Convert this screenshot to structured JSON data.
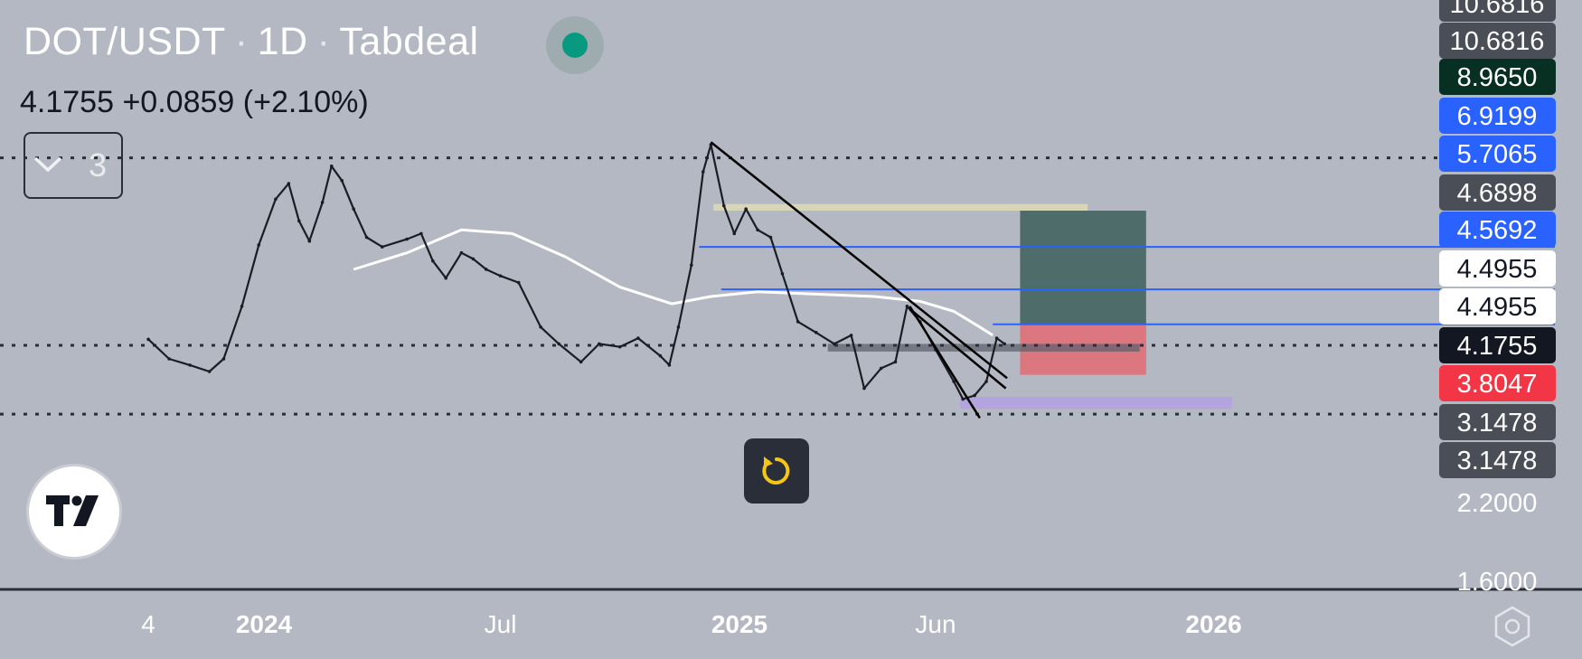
{
  "header": {
    "symbol": "DOT/USDT",
    "interval": "1D",
    "exchange": "Tabdeal",
    "separator": "·"
  },
  "quote": {
    "price": "4.1755",
    "change": "+0.0859",
    "change_pct": "(+2.10%)"
  },
  "indicators_toggle": {
    "count": "3",
    "icon": "chevron-down-icon"
  },
  "logo": {
    "icon": "tradingview-logo"
  },
  "reset_button": {
    "icon": "reset-icon",
    "color": "#f5c518"
  },
  "settings": {
    "icon": "gear-icon"
  },
  "colors": {
    "background": "#b4b8c2",
    "candle": "#1b1d24",
    "ma_line": "#ffffff",
    "hline_blue": "#2962ff",
    "gain_zone": "#4e6d6a",
    "loss_zone": "#e0707a",
    "support_zone": "#b3a3de",
    "resistance_zone": "#d9d5b8"
  },
  "chart_data": {
    "type": "line",
    "title": "DOT/USDT · 1D · Tabdeal",
    "x_ticks": [
      {
        "label": "4",
        "date": "2023-10-04",
        "bold": false
      },
      {
        "label": "2024",
        "date": "2024-01-01",
        "bold": true
      },
      {
        "label": "Jul",
        "date": "2024-07-01",
        "bold": false
      },
      {
        "label": "2025",
        "date": "2025-01-01",
        "bold": true
      },
      {
        "label": "Jun",
        "date": "2025-06-01",
        "bold": false
      },
      {
        "label": "2026",
        "date": "2026-01-01",
        "bold": true
      }
    ],
    "y_scale": "log",
    "ylim": [
      1.6,
      10.8
    ],
    "y_axis_labels": [
      {
        "value": 10.6816,
        "label": "10.6816",
        "style": "plain"
      },
      {
        "value": 10.6816,
        "label": "10.6816",
        "style": "plain"
      },
      {
        "value": 8.965,
        "label": "8.9650",
        "style": "dark-green"
      },
      {
        "value": 6.9199,
        "label": "6.9199",
        "style": "blue"
      },
      {
        "value": 5.7065,
        "label": "5.7065",
        "style": "blue"
      },
      {
        "value": 4.6898,
        "label": "4.6898",
        "style": "plain"
      },
      {
        "value": 4.5692,
        "label": "4.5692",
        "style": "blue"
      },
      {
        "value": 4.4955,
        "label": "4.4955",
        "style": "white"
      },
      {
        "value": 4.4955,
        "label": "4.4955",
        "style": "white"
      },
      {
        "value": 4.1755,
        "label": "4.1755",
        "style": "black"
      },
      {
        "value": 3.8047,
        "label": "3.8047",
        "style": "red"
      },
      {
        "value": 3.1478,
        "label": "3.1478",
        "style": "plain"
      },
      {
        "value": 3.1478,
        "label": "3.1478",
        "style": "plain"
      },
      {
        "value": 2.2,
        "label": "2.2000",
        "style": "none"
      },
      {
        "value": 1.6,
        "label": "1.6000",
        "style": "none"
      }
    ],
    "price_series": {
      "name": "DOT/USDT",
      "points": [
        [
          "2023-10-04",
          4.28
        ],
        [
          "2023-10-20",
          3.95
        ],
        [
          "2023-11-05",
          3.85
        ],
        [
          "2023-11-20",
          3.75
        ],
        [
          "2023-12-01",
          3.95
        ],
        [
          "2023-12-15",
          4.9
        ],
        [
          "2023-12-28",
          6.3
        ],
        [
          "2024-01-10",
          7.6
        ],
        [
          "2024-01-20",
          8.1
        ],
        [
          "2024-01-28",
          6.95
        ],
        [
          "2024-02-05",
          6.4
        ],
        [
          "2024-02-15",
          7.5
        ],
        [
          "2024-02-22",
          8.7
        ],
        [
          "2024-03-01",
          8.2
        ],
        [
          "2024-03-10",
          7.3
        ],
        [
          "2024-03-20",
          6.5
        ],
        [
          "2024-04-01",
          6.25
        ],
        [
          "2024-04-20",
          6.45
        ],
        [
          "2024-05-01",
          6.6
        ],
        [
          "2024-05-10",
          5.9
        ],
        [
          "2024-05-20",
          5.5
        ],
        [
          "2024-06-01",
          6.1
        ],
        [
          "2024-06-10",
          5.95
        ],
        [
          "2024-06-20",
          5.7
        ],
        [
          "2024-07-01",
          5.55
        ],
        [
          "2024-07-15",
          5.4
        ],
        [
          "2024-08-01",
          4.5
        ],
        [
          "2024-08-15",
          4.2
        ],
        [
          "2024-09-01",
          3.9
        ],
        [
          "2024-09-15",
          4.2
        ],
        [
          "2024-10-01",
          4.15
        ],
        [
          "2024-10-15",
          4.3
        ],
        [
          "2024-11-01",
          4.0
        ],
        [
          "2024-11-08",
          3.85
        ],
        [
          "2024-11-15",
          4.5
        ],
        [
          "2024-11-25",
          5.8
        ],
        [
          "2024-12-04",
          8.5
        ],
        [
          "2024-12-10",
          9.5
        ],
        [
          "2024-12-20",
          7.4
        ],
        [
          "2024-12-28",
          6.6
        ],
        [
          "2025-01-06",
          7.3
        ],
        [
          "2025-01-15",
          6.7
        ],
        [
          "2025-01-25",
          6.5
        ],
        [
          "2025-02-03",
          5.6
        ],
        [
          "2025-02-15",
          4.6
        ],
        [
          "2025-03-01",
          4.4
        ],
        [
          "2025-03-15",
          4.2
        ],
        [
          "2025-03-28",
          4.35
        ],
        [
          "2025-04-07",
          3.5
        ],
        [
          "2025-04-20",
          3.8
        ],
        [
          "2025-05-01",
          3.9
        ],
        [
          "2025-05-10",
          4.9
        ],
        [
          "2025-05-20",
          4.6
        ],
        [
          "2025-06-01",
          4.1
        ],
        [
          "2025-06-15",
          3.6
        ],
        [
          "2025-06-22",
          3.35
        ],
        [
          "2025-07-01",
          3.4
        ],
        [
          "2025-07-10",
          3.6
        ],
        [
          "2025-07-18",
          4.3
        ],
        [
          "2025-07-24",
          4.2
        ]
      ]
    },
    "ma_series": {
      "points": [
        [
          "2024-03-10",
          5.7
        ],
        [
          "2024-04-20",
          6.1
        ],
        [
          "2024-06-01",
          6.7
        ],
        [
          "2024-07-10",
          6.6
        ],
        [
          "2024-08-20",
          6.0
        ],
        [
          "2024-10-01",
          5.3
        ],
        [
          "2024-11-10",
          4.95
        ],
        [
          "2024-12-10",
          5.1
        ],
        [
          "2025-01-15",
          5.2
        ],
        [
          "2025-03-01",
          5.15
        ],
        [
          "2025-04-15",
          5.1
        ],
        [
          "2025-05-20",
          5.0
        ],
        [
          "2025-06-15",
          4.8
        ],
        [
          "2025-07-05",
          4.5
        ],
        [
          "2025-07-15",
          4.35
        ]
      ]
    },
    "dotted_levels": [
      9.0,
      4.1755,
      3.15
    ],
    "blue_levels": [
      {
        "value": 6.25,
        "from": "2024-12-01"
      },
      {
        "value": 5.25,
        "from": "2024-12-18"
      },
      {
        "value": 4.55,
        "from": "2025-07-15"
      }
    ],
    "trendlines": [
      {
        "from": [
          "2024-12-10",
          9.6
        ],
        "to": [
          "2025-07-26",
          3.65
        ]
      },
      {
        "from": [
          "2025-05-12",
          4.85
        ],
        "to": [
          "2025-07-25",
          3.5
        ]
      },
      {
        "from": [
          "2025-05-12",
          4.9
        ],
        "to": [
          "2025-07-05",
          3.1
        ]
      }
    ],
    "zones": [
      {
        "kind": "resistance",
        "from": "2024-12-12",
        "to": "2025-09-26",
        "low": 7.25,
        "high": 7.45
      },
      {
        "kind": "gain",
        "from": "2025-08-05",
        "to": "2025-11-10",
        "low": 4.55,
        "high": 7.25
      },
      {
        "kind": "loss",
        "from": "2025-08-05",
        "to": "2025-11-10",
        "low": 3.7,
        "high": 4.55
      },
      {
        "kind": "support",
        "from": "2025-06-20",
        "to": "2026-01-15",
        "low": 3.22,
        "high": 3.38
      },
      {
        "kind": "grey-band",
        "from": "2025-03-10",
        "to": "2025-11-05",
        "low": 4.07,
        "high": 4.2
      }
    ]
  }
}
